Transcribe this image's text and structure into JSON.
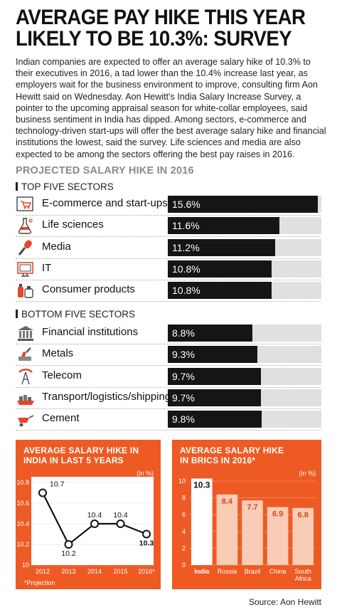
{
  "title": {
    "line1": "AVERAGE PAY HIKE THIS YEAR",
    "line2": "LIKELY TO BE 10.3%: SURVEY"
  },
  "intro": "Indian companies are expected to offer an average salary hike of 10.3% to their executives in 2016, a tad lower than the 10.4% increase last year, as employers wait for the business environment to improve, consulting firm Aon Hewitt said on Wednesday. Aon Hewitt's India Salary Increase Survey, a pointer to the upcoming appraisal season for white-collar employees, said business sentiment in India has dipped. Among sectors, e-commerce and technology-driven start-ups will offer the best average salary hike and financial institutions the lowest, said the survey. Life sciences and media are also expected to be among the sectors offering the best pay raises in 2016.",
  "section_heading": "PROJECTED SALARY HIKE IN 2016",
  "colors": {
    "accent": "#ee5a24",
    "bar": "#151515",
    "track": "#e0e0e0"
  },
  "source": "Source:  Aon Hewitt",
  "chart_data": [
    {
      "type": "bar",
      "title": "TOP FIVE SECTORS",
      "categories": [
        "E-commerce and start-ups",
        "Life sciences",
        "Media",
        "IT",
        "Consumer products"
      ],
      "icons": [
        "cart-icon",
        "flask-icon",
        "microphone-icon",
        "monitor-icon",
        "bottles-icon"
      ],
      "values": [
        15.6,
        11.6,
        11.2,
        10.8,
        10.8
      ],
      "labels": [
        "15.6%",
        "11.6%",
        "11.2%",
        "10.8%",
        "10.8%"
      ],
      "orientation": "horizontal"
    },
    {
      "type": "bar",
      "title": "BOTTOM FIVE SECTORS",
      "categories": [
        "Financial institutions",
        "Metals",
        "Telecom",
        "Transport/logistics/shipping",
        "Cement"
      ],
      "icons": [
        "bank-icon",
        "metal-icon",
        "antenna-icon",
        "ship-icon",
        "wheelbarrow-icon"
      ],
      "values": [
        8.8,
        9.3,
        9.7,
        9.7,
        9.8
      ],
      "labels": [
        "8.8%",
        "9.3%",
        "9.7%",
        "9.7%",
        "9.8%"
      ],
      "orientation": "horizontal"
    },
    {
      "type": "line",
      "title_line1": "AVERAGE SALARY HIKE IN",
      "title_line2": "INDIA IN LAST 5 YEARS",
      "unit": "(in %)",
      "x": [
        "2012",
        "2013",
        "2014",
        "2015",
        "2016*"
      ],
      "values": [
        10.7,
        10.2,
        10.4,
        10.4,
        10.3
      ],
      "labels": [
        "10.7",
        "10.2",
        "10.4",
        "10.4",
        "10.3"
      ],
      "yticks": [
        "10.8",
        "10.6",
        "10.4",
        "10.2",
        "10"
      ],
      "ylim": [
        10,
        10.8
      ],
      "footnote": "*Projection"
    },
    {
      "type": "bar",
      "title_line1": "AVERAGE SALARY HIKE",
      "title_line2": "IN BRICS IN 2016*",
      "unit": "(in %)",
      "categories": [
        "India",
        "Russia",
        "Brazil",
        "China",
        "South Africa"
      ],
      "values": [
        10.3,
        8.4,
        7.7,
        6.9,
        6.8
      ],
      "labels": [
        "10.3",
        "8.4",
        "7.7",
        "6.9",
        "6.8"
      ],
      "yticks": [
        "10",
        "8",
        "6",
        "4",
        "2",
        "0"
      ],
      "ylim": [
        0,
        10
      ]
    }
  ]
}
